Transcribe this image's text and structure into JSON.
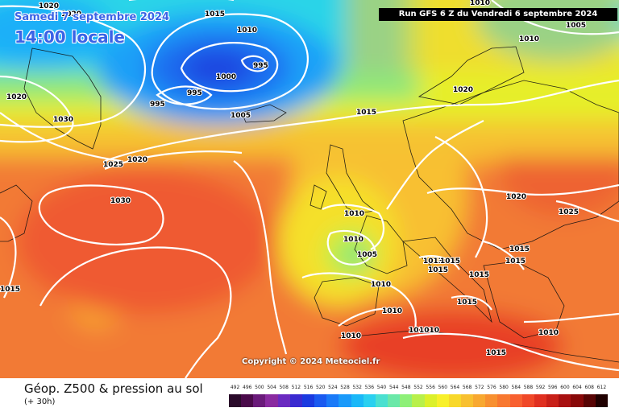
{
  "header": {
    "date": "Samedi 7 septembre 2024",
    "time": "14:00 locale",
    "run": "Run GFS 6 Z du Vendredi 6 septembre 2024"
  },
  "footer": {
    "title": "Géop. Z500 & pression au sol",
    "subtitle": "(+ 30h)",
    "copyright": "Copyright © 2024 Meteociel.fr"
  },
  "isobars": [
    {
      "text": "1020"
    },
    {
      "text": "1020"
    },
    {
      "text": "1015"
    },
    {
      "text": "1010"
    },
    {
      "text": "995"
    },
    {
      "text": "1000"
    },
    {
      "text": "995"
    },
    {
      "text": "995"
    },
    {
      "text": "1005"
    },
    {
      "text": "1020"
    },
    {
      "text": "1030"
    },
    {
      "text": "1025"
    },
    {
      "text": "1020"
    },
    {
      "text": "1015"
    },
    {
      "text": "1020"
    },
    {
      "text": "1010"
    },
    {
      "text": "1010"
    },
    {
      "text": "1005"
    },
    {
      "text": "1030"
    },
    {
      "text": "1015"
    },
    {
      "text": "1010"
    },
    {
      "text": "1010"
    },
    {
      "text": "1005"
    },
    {
      "text": "1010"
    },
    {
      "text": "1013"
    },
    {
      "text": "1015"
    },
    {
      "text": "1015"
    },
    {
      "text": "1015"
    },
    {
      "text": "1015"
    },
    {
      "text": "1015"
    },
    {
      "text": "1015"
    },
    {
      "text": "1025"
    },
    {
      "text": "1020"
    },
    {
      "text": "1010"
    },
    {
      "text": "1010"
    },
    {
      "text": "1010"
    },
    {
      "text": "1015"
    },
    {
      "text": "1010"
    },
    {
      "text": "1010"
    }
  ],
  "scale": {
    "labels": [
      "492",
      "496",
      "500",
      "504",
      "508",
      "512",
      "516",
      "520",
      "524",
      "528",
      "532",
      "536",
      "540",
      "544",
      "548",
      "552",
      "556",
      "560",
      "564",
      "568",
      "572",
      "576",
      "580",
      "584",
      "588",
      "592",
      "596",
      "600",
      "604",
      "608",
      "612"
    ],
    "colors": [
      "#2a0a2a",
      "#4a0a4a",
      "#6a1a7a",
      "#8a2aa0",
      "#6a2ac0",
      "#3a2ad0",
      "#1a3ae0",
      "#1a5af0",
      "#1a7af8",
      "#1a9afa",
      "#1ab8f8",
      "#2ad0f0",
      "#4ae0d0",
      "#6ae8a8",
      "#8ef078",
      "#b8f04a",
      "#dcf02a",
      "#f8f02a",
      "#f8d82a",
      "#f8c030",
      "#f8a830",
      "#f89030",
      "#f87830",
      "#f86030",
      "#f04828",
      "#e03020",
      "#c82018",
      "#a81010",
      "#880808",
      "#580404",
      "#200000"
    ]
  }
}
